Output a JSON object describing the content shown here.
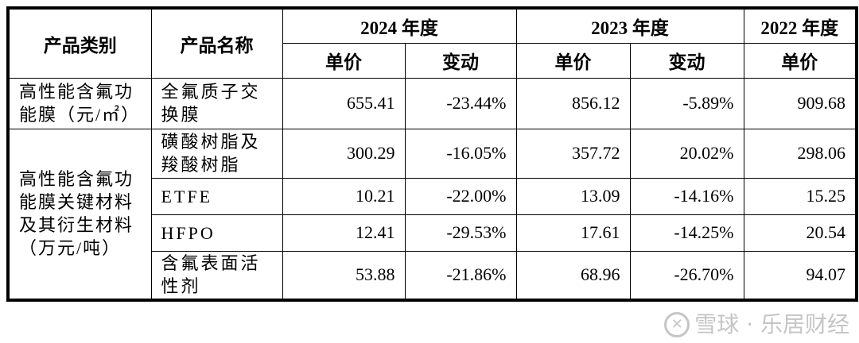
{
  "headers": {
    "category": "产品类别",
    "name": "产品名称",
    "y2024": "2024 年度",
    "y2023": "2023 年度",
    "y2022": "2022 年度",
    "price": "单价",
    "change": "变动"
  },
  "groups": [
    {
      "category": "高性能含氟功能膜（元/㎡）"
    },
    {
      "category": "高性能含氟功能膜关键材料及其衍生材料（万元/吨）"
    }
  ],
  "rows": [
    {
      "name": "全氟质子交换膜",
      "p2024": "655.41",
      "c2024": "-23.44%",
      "p2023": "856.12",
      "c2023": "-5.89%",
      "p2022": "909.68"
    },
    {
      "name": "磺酸树脂及羧酸树脂",
      "p2024": "300.29",
      "c2024": "-16.05%",
      "p2023": "357.72",
      "c2023": "20.02%",
      "p2022": "298.06"
    },
    {
      "name": "ETFE",
      "p2024": "10.21",
      "c2024": "-22.00%",
      "p2023": "13.09",
      "c2023": "-14.16%",
      "p2022": "15.25"
    },
    {
      "name": "HFPO",
      "p2024": "12.41",
      "c2024": "-29.53%",
      "p2023": "17.61",
      "c2023": "-14.25%",
      "p2022": "20.54"
    },
    {
      "name": "含氟表面活性剂",
      "p2024": "53.88",
      "c2024": "-21.86%",
      "p2023": "68.96",
      "c2023": "-26.70%",
      "p2022": "94.07"
    }
  ],
  "watermark": {
    "text": "雪球 · 乐居财经",
    "icon": "snowball-logo-icon"
  }
}
